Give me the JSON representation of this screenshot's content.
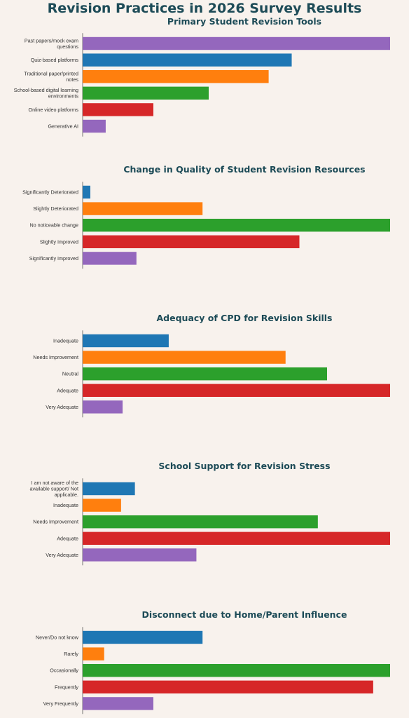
{
  "page": {
    "title": "Revision Practices in 2026 Survey Results"
  },
  "chart_data": [
    {
      "type": "bar",
      "orientation": "horizontal",
      "title": "Primary Student Revision Tools",
      "categories": [
        "Past papers/mock exam questions",
        "Quiz-based platforms",
        "Traditional paper/printed notes",
        "School-based digital learning environments",
        "Online video platforms",
        "Generative AI"
      ],
      "values": [
        100,
        68,
        60.5,
        41,
        23,
        7.5
      ],
      "colors": [
        "#9467bd",
        "#1f77b4",
        "#ff7f0e",
        "#2ca02c",
        "#d62728",
        "#9467bd"
      ],
      "xlim": [
        0,
        100
      ],
      "grid": false,
      "x_axis_ticks": false
    },
    {
      "type": "bar",
      "orientation": "horizontal",
      "title": "Change in Quality of Student Revision Resources",
      "categories": [
        "Significantly Deteriorated",
        "Slightly Deteriorated",
        "No noticeable change",
        "Slightly Improved",
        "Significantly Improved"
      ],
      "values": [
        2.5,
        39,
        100,
        70.5,
        17.5
      ],
      "colors": [
        "#1f77b4",
        "#ff7f0e",
        "#2ca02c",
        "#d62728",
        "#9467bd"
      ],
      "xlim": [
        0,
        100
      ],
      "grid": false,
      "x_axis_ticks": false
    },
    {
      "type": "bar",
      "orientation": "horizontal",
      "title": "Adequacy of CPD for Revision Skills",
      "categories": [
        "Inadequate",
        "Needs Improvement",
        "Neutral",
        "Adequate",
        "Very Adequate"
      ],
      "values": [
        28,
        66,
        79.5,
        100,
        13
      ],
      "colors": [
        "#1f77b4",
        "#ff7f0e",
        "#2ca02c",
        "#d62728",
        "#9467bd"
      ],
      "xlim": [
        0,
        100
      ],
      "grid": false,
      "x_axis_ticks": false
    },
    {
      "type": "bar",
      "orientation": "horizontal",
      "title": "School Support for Revision Stress",
      "categories": [
        "I am not aware of the available support/ Not applicable.",
        "Inadequate",
        "Needs Improvement",
        "Adequate",
        "Very Adequate"
      ],
      "values": [
        17,
        12.5,
        76.5,
        100,
        37
      ],
      "colors": [
        "#1f77b4",
        "#ff7f0e",
        "#2ca02c",
        "#d62728",
        "#9467bd"
      ],
      "xlim": [
        0,
        100
      ],
      "grid": false,
      "x_axis_ticks": false
    },
    {
      "type": "bar",
      "orientation": "horizontal",
      "title": "Disconnect due to Home/Parent Influence",
      "categories": [
        "Never/Do not know",
        "Rarely",
        "Occasionally",
        "Frequently",
        "Very Frequently"
      ],
      "values": [
        39,
        7,
        100,
        94.5,
        23
      ],
      "colors": [
        "#1f77b4",
        "#ff7f0e",
        "#2ca02c",
        "#d62728",
        "#9467bd"
      ],
      "xlim": [
        0,
        100
      ],
      "grid": false,
      "x_axis_ticks": false
    }
  ]
}
